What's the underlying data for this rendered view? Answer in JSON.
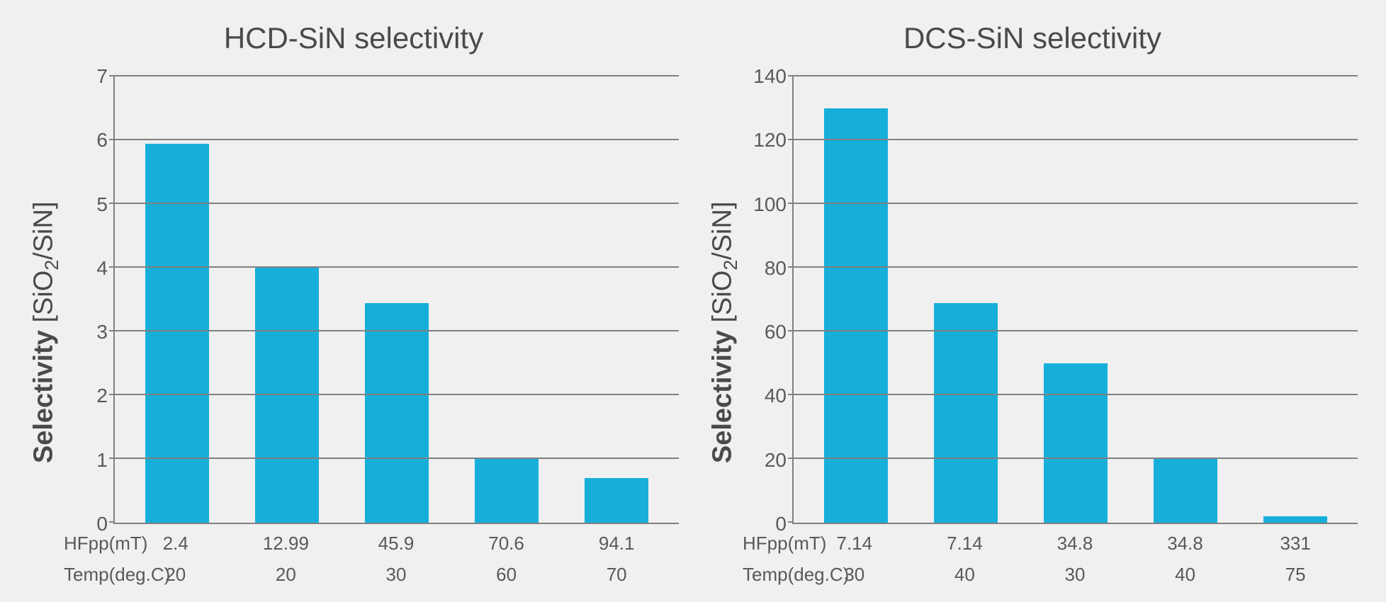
{
  "background_color": "#f0f0f0",
  "axis_color": "#808080",
  "grid_color": "#808080",
  "text_color": "#4a4a4a",
  "tick_text_color": "#595959",
  "bar_color": "#17afd9",
  "title_fontsize": 42,
  "ylabel_fontsize": 38,
  "tick_fontsize": 28,
  "xlabel_fontsize": 26,
  "ylabel_bold": "Selectivity",
  "ylabel_light_prefix": " [SiO",
  "ylabel_light_sub": "2",
  "ylabel_light_suffix": "/SiN]",
  "xaxis_label_row1": "HFpp(mT)",
  "xaxis_label_row2": "Temp(deg.C)",
  "charts": [
    {
      "title": "HCD-SiN selectivity",
      "ymin": 0,
      "ymax": 7,
      "ytick_step": 1,
      "values": [
        5.95,
        4.0,
        3.45,
        1.0,
        0.7
      ],
      "hfpp": [
        "2.4",
        "12.99",
        "45.9",
        "70.6",
        "94.1"
      ],
      "temp": [
        "20",
        "20",
        "30",
        "60",
        "70"
      ]
    },
    {
      "title": "DCS-SiN selectivity",
      "ymin": 0,
      "ymax": 140,
      "ytick_step": 20,
      "values": [
        130,
        69,
        50,
        20,
        2
      ],
      "hfpp": [
        "7.14",
        "7.14",
        "34.8",
        "34.8",
        "331"
      ],
      "temp": [
        "30",
        "40",
        "30",
        "40",
        "75"
      ]
    }
  ]
}
